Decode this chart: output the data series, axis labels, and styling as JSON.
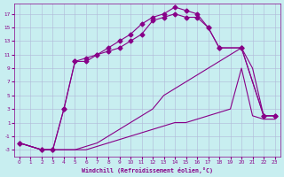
{
  "xlabel": "Windchill (Refroidissement éolien,°C)",
  "bg_color": "#c8eef0",
  "grid_color": "#b0b8d8",
  "line_color": "#880088",
  "xlim": [
    -0.5,
    23.5
  ],
  "ylim": [
    -4,
    18.5
  ],
  "xticks": [
    0,
    1,
    2,
    3,
    4,
    5,
    6,
    7,
    8,
    9,
    10,
    11,
    12,
    13,
    14,
    15,
    16,
    17,
    18,
    19,
    20,
    21,
    22,
    23
  ],
  "yticks": [
    -3,
    -1,
    1,
    3,
    5,
    7,
    9,
    11,
    13,
    15,
    17
  ],
  "line1_x": [
    0,
    2,
    3,
    4,
    5,
    6,
    7,
    8,
    9,
    10,
    11,
    12,
    13,
    14,
    15,
    16,
    17,
    18,
    19,
    20,
    21,
    22,
    23
  ],
  "line1_y": [
    -2,
    -3,
    -3,
    -3,
    -3,
    -3,
    -2.5,
    -2,
    -1.5,
    -1,
    -0.5,
    0,
    0.5,
    1,
    1,
    1.5,
    2,
    2.5,
    3,
    9,
    2,
    1.5,
    1.5
  ],
  "line2_x": [
    0,
    2,
    3,
    4,
    5,
    6,
    7,
    8,
    9,
    10,
    11,
    12,
    13,
    14,
    15,
    16,
    17,
    18,
    19,
    20,
    21,
    22,
    23
  ],
  "line2_y": [
    -2,
    -3,
    -3,
    -3,
    -3,
    -2.5,
    -2,
    -1,
    0,
    1,
    2,
    3,
    5,
    6,
    7,
    8,
    9,
    10,
    11,
    12,
    9,
    2,
    2
  ],
  "line3_x": [
    0,
    2,
    3,
    4,
    5,
    6,
    7,
    8,
    9,
    10,
    11,
    12,
    13,
    14,
    15,
    16,
    17,
    18,
    20,
    22,
    23
  ],
  "line3_y": [
    -2,
    -3,
    -3,
    3,
    10,
    10,
    11,
    11.5,
    12,
    13,
    14,
    16,
    16.5,
    17,
    16.5,
    16.5,
    15,
    12,
    12,
    2,
    2
  ],
  "line4_x": [
    0,
    2,
    3,
    4,
    5,
    6,
    7,
    8,
    9,
    10,
    11,
    12,
    13,
    14,
    15,
    16,
    17,
    18,
    20,
    22,
    23
  ],
  "line4_y": [
    -2,
    -3,
    -3,
    3,
    10,
    10.5,
    11,
    12,
    13,
    14,
    15.5,
    16.5,
    17,
    18,
    17.5,
    17,
    15,
    12,
    12,
    2,
    2
  ]
}
